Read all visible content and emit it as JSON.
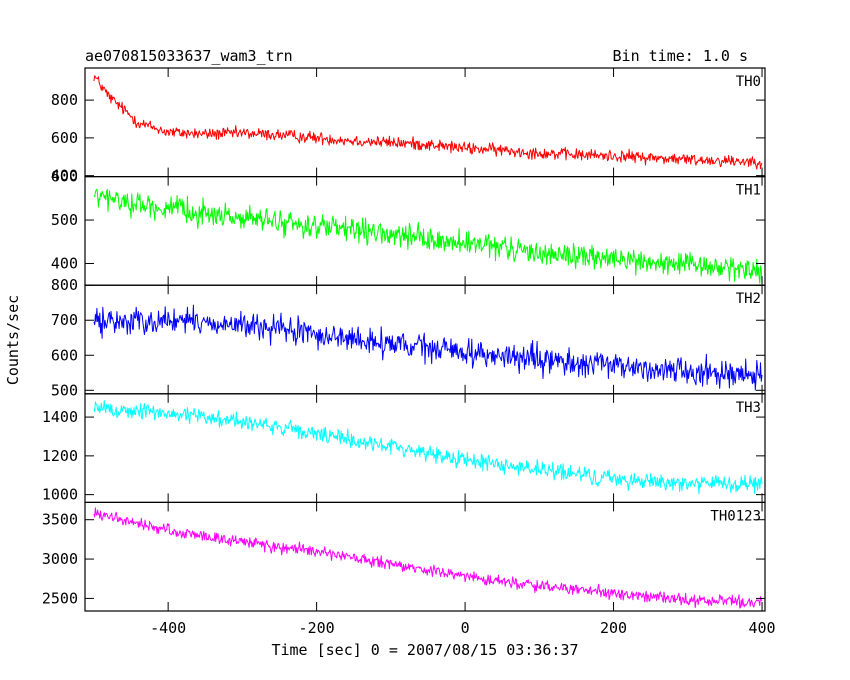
{
  "header": {
    "title": "ae070815033637_wam3_trn",
    "bin_time": "Bin time: 1.0 s"
  },
  "chart_data": {
    "type": "line",
    "xlabel": "Time [sec] 0 = 2007/08/15 03:36:37",
    "ylabel": "Counts/sec",
    "xlim": [
      -512,
      404
    ],
    "xticks": [
      -400,
      -200,
      0,
      200,
      400
    ],
    "grid": false,
    "legend": "none",
    "panels": [
      {
        "name": "TH0",
        "color": "#ff0000",
        "ylim": [
          395,
          970
        ],
        "yticks": [
          400,
          600,
          800
        ],
        "x": [
          -500,
          -480,
          -460,
          -440,
          -400,
          -350,
          -300,
          -250,
          -200,
          -150,
          -100,
          -50,
          0,
          50,
          100,
          150,
          200,
          250,
          300,
          350,
          400
        ],
        "y": [
          930,
          820,
          750,
          680,
          630,
          620,
          625,
          615,
          600,
          585,
          575,
          565,
          545,
          535,
          520,
          510,
          505,
          495,
          485,
          480,
          475
        ],
        "noise": 28
      },
      {
        "name": "TH1",
        "color": "#00ff00",
        "ylim": [
          350,
          600
        ],
        "yticks": [
          400,
          500,
          600
        ],
        "x": [
          -500,
          -400,
          -300,
          -200,
          -100,
          0,
          100,
          200,
          300,
          400
        ],
        "y": [
          555,
          525,
          505,
          485,
          465,
          445,
          425,
          410,
          395,
          385
        ],
        "noise": 24
      },
      {
        "name": "TH2",
        "color": "#0000ff",
        "ylim": [
          490,
          800
        ],
        "yticks": [
          500,
          600,
          700,
          800
        ],
        "x": [
          -500,
          -400,
          -300,
          -200,
          -100,
          0,
          100,
          200,
          300,
          400
        ],
        "y": [
          695,
          700,
          685,
          660,
          630,
          610,
          585,
          570,
          555,
          545
        ],
        "noise": 33
      },
      {
        "name": "TH3",
        "color": "#00ffff",
        "ylim": [
          960,
          1520
        ],
        "yticks": [
          1000,
          1200,
          1400
        ],
        "x": [
          -500,
          -400,
          -300,
          -200,
          -100,
          0,
          100,
          200,
          300,
          400
        ],
        "y": [
          1445,
          1420,
          1380,
          1310,
          1250,
          1180,
          1130,
          1080,
          1060,
          1050
        ],
        "noise": 38
      },
      {
        "name": "TH0123",
        "color": "#ff00ff",
        "ylim": [
          2340,
          3720
        ],
        "yticks": [
          2500,
          3000,
          3500
        ],
        "x": [
          -500,
          -400,
          -300,
          -200,
          -100,
          0,
          100,
          200,
          300,
          400
        ],
        "y": [
          3580,
          3360,
          3220,
          3090,
          2930,
          2780,
          2660,
          2560,
          2480,
          2450
        ],
        "noise": 65
      }
    ]
  }
}
